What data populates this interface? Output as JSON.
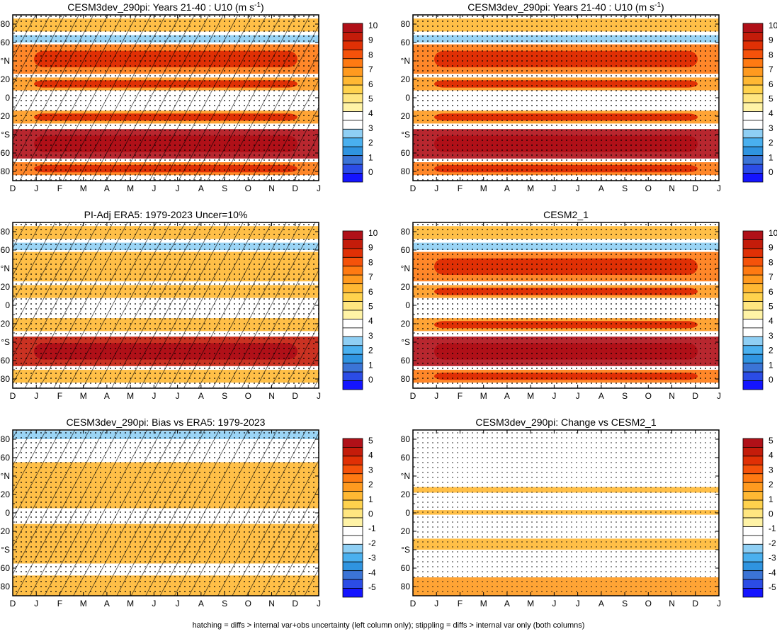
{
  "colors": {
    "diverging": [
      "#1414ff",
      "#2b4ce6",
      "#3b74d6",
      "#2f94e0",
      "#4ab0ef",
      "#8fcff4",
      "#ffffff",
      "#fff3a6",
      "#ffe680",
      "#ffd24d",
      "#ffb833",
      "#ff9a1f",
      "#ff7a12",
      "#f5520a",
      "#e03005",
      "#c41c0a",
      "#b01018"
    ]
  },
  "panels": [
    {
      "title_main": "CESM3dev_290pi: Years 21-40 : U10 (m s",
      "title_sup": "-1",
      "title_close": ")",
      "colorbar_labels": [
        "10",
        "9",
        "8",
        "7",
        "6",
        "5",
        "4",
        "3",
        "2",
        "1",
        "0"
      ],
      "colorbar_colors": [
        "#b01018",
        "#c41c0a",
        "#e03005",
        "#f5520a",
        "#ff7a12",
        "#ff9a1f",
        "#ffb833",
        "#ffd24d",
        "#ffe680",
        "#fff3a6",
        "#ffffff",
        "#ffffff",
        "#8fcff4",
        "#4ab0ef",
        "#2f94e0",
        "#3b74d6",
        "#2b4ce6",
        "#1414ff"
      ]
    },
    {
      "title_main": "CESM3dev_290pi: Years 21-40 : U10 (m s",
      "title_sup": "-1",
      "title_close": ")",
      "colorbar_labels": [
        "10",
        "9",
        "8",
        "7",
        "6",
        "5",
        "4",
        "3",
        "2",
        "1",
        "0"
      ],
      "colorbar_colors": [
        "#b01018",
        "#c41c0a",
        "#e03005",
        "#f5520a",
        "#ff7a12",
        "#ff9a1f",
        "#ffb833",
        "#ffd24d",
        "#ffe680",
        "#fff3a6",
        "#ffffff",
        "#ffffff",
        "#8fcff4",
        "#4ab0ef",
        "#2f94e0",
        "#3b74d6",
        "#2b4ce6",
        "#1414ff"
      ]
    },
    {
      "title_main": "PI-Adj ERA5: 1979-2023 Uncer=10%",
      "title_sup": "",
      "title_close": "",
      "colorbar_labels": [
        "10",
        "9",
        "8",
        "7",
        "6",
        "5",
        "4",
        "3",
        "2",
        "1",
        "0"
      ],
      "colorbar_colors": [
        "#b01018",
        "#c41c0a",
        "#e03005",
        "#f5520a",
        "#ff7a12",
        "#ff9a1f",
        "#ffb833",
        "#ffd24d",
        "#ffe680",
        "#fff3a6",
        "#ffffff",
        "#ffffff",
        "#8fcff4",
        "#4ab0ef",
        "#2f94e0",
        "#3b74d6",
        "#2b4ce6",
        "#1414ff"
      ]
    },
    {
      "title_main": "CESM2_1",
      "title_sup": "",
      "title_close": "",
      "colorbar_labels": [
        "10",
        "9",
        "8",
        "7",
        "6",
        "5",
        "4",
        "3",
        "2",
        "1",
        "0"
      ],
      "colorbar_colors": [
        "#b01018",
        "#c41c0a",
        "#e03005",
        "#f5520a",
        "#ff7a12",
        "#ff9a1f",
        "#ffb833",
        "#ffd24d",
        "#ffe680",
        "#fff3a6",
        "#ffffff",
        "#ffffff",
        "#8fcff4",
        "#4ab0ef",
        "#2f94e0",
        "#3b74d6",
        "#2b4ce6",
        "#1414ff"
      ]
    },
    {
      "title_main": "CESM3dev_290pi: Bias vs ERA5: 1979-2023",
      "title_sup": "",
      "title_close": "",
      "colorbar_labels": [
        "5",
        "4",
        "3",
        "2",
        "1",
        "0",
        "-1",
        "-2",
        "-3",
        "-4",
        "-5"
      ],
      "colorbar_colors": [
        "#b01018",
        "#c41c0a",
        "#e03005",
        "#f5520a",
        "#ff7a12",
        "#ff9a1f",
        "#ffb833",
        "#ffd24d",
        "#ffe680",
        "#fff3a6",
        "#ffffff",
        "#ffffff",
        "#8fcff4",
        "#4ab0ef",
        "#2f94e0",
        "#3b74d6",
        "#2b4ce6",
        "#1414ff"
      ]
    },
    {
      "title_main": "CESM3dev_290pi: Change vs CESM2_1",
      "title_sup": "",
      "title_close": "",
      "colorbar_labels": [
        "5",
        "4",
        "3",
        "2",
        "1",
        "0",
        "-1",
        "-2",
        "-3",
        "-4",
        "-5"
      ],
      "colorbar_colors": [
        "#b01018",
        "#c41c0a",
        "#e03005",
        "#f5520a",
        "#ff7a12",
        "#ff9a1f",
        "#ffb833",
        "#ffd24d",
        "#ffe680",
        "#fff3a6",
        "#ffffff",
        "#ffffff",
        "#8fcff4",
        "#4ab0ef",
        "#2f94e0",
        "#3b74d6",
        "#2b4ce6",
        "#1414ff"
      ]
    }
  ],
  "axes": {
    "x_ticks": [
      "D",
      "J",
      "F",
      "M",
      "A",
      "M",
      "J",
      "J",
      "A",
      "S",
      "O",
      "N",
      "D",
      "J"
    ],
    "y_ticks": [
      "80",
      "60",
      "°N",
      "20",
      "0",
      "20",
      "°S",
      "60",
      "80"
    ]
  },
  "footer": "hatching = diffs > internal var+obs uncertainty (left column only); stippling = diffs > internal var only (both columns)",
  "chart_data": [
    {
      "type": "heatmap",
      "title": "CESM3dev_290pi: Years 21-40 : U10 (m s-1)",
      "x": [
        "D",
        "J",
        "F",
        "M",
        "A",
        "M",
        "J",
        "J",
        "A",
        "S",
        "O",
        "N",
        "D",
        "J"
      ],
      "y": [
        80,
        60,
        40,
        20,
        0,
        -20,
        -40,
        -60,
        -80
      ],
      "colorbar": [
        0,
        1,
        2,
        3,
        4,
        5,
        6,
        7,
        8,
        9,
        10
      ],
      "bands": [
        {
          "lat_from": 86,
          "lat_to": 72,
          "value": 6
        },
        {
          "lat_from": 68,
          "lat_to": 60,
          "value": 3
        },
        {
          "lat_from": 58,
          "lat_to": 26,
          "value": 7.5
        },
        {
          "lat_from": 22,
          "lat_to": 8,
          "value": 7
        },
        {
          "lat_from": 3,
          "lat_to": -6,
          "value": 3.5
        },
        {
          "lat_from": -14,
          "lat_to": -28,
          "value": 7
        },
        {
          "lat_from": -34,
          "lat_to": -66,
          "value": 10
        },
        {
          "lat_from": -70,
          "lat_to": -84,
          "value": 7.5
        }
      ],
      "hatching": true,
      "stippling": true
    },
    {
      "type": "heatmap",
      "title": "CESM3dev_290pi: Years 21-40 : U10 (m s-1)",
      "x": [
        "D",
        "J",
        "F",
        "M",
        "A",
        "M",
        "J",
        "J",
        "A",
        "S",
        "O",
        "N",
        "D",
        "J"
      ],
      "y": [
        80,
        60,
        40,
        20,
        0,
        -20,
        -40,
        -60,
        -80
      ],
      "colorbar": [
        0,
        1,
        2,
        3,
        4,
        5,
        6,
        7,
        8,
        9,
        10
      ],
      "bands": [
        {
          "lat_from": 86,
          "lat_to": 72,
          "value": 6
        },
        {
          "lat_from": 68,
          "lat_to": 60,
          "value": 3
        },
        {
          "lat_from": 58,
          "lat_to": 26,
          "value": 7.5
        },
        {
          "lat_from": 22,
          "lat_to": 8,
          "value": 7
        },
        {
          "lat_from": 3,
          "lat_to": -6,
          "value": 3.5
        },
        {
          "lat_from": -14,
          "lat_to": -28,
          "value": 7
        },
        {
          "lat_from": -34,
          "lat_to": -66,
          "value": 10
        },
        {
          "lat_from": -70,
          "lat_to": -84,
          "value": 7.5
        }
      ],
      "hatching": false,
      "stippling": true
    },
    {
      "type": "heatmap",
      "title": "PI-Adj ERA5: 1979-2023 Uncer=10%",
      "x": [
        "D",
        "J",
        "F",
        "M",
        "A",
        "M",
        "J",
        "J",
        "A",
        "S",
        "O",
        "N",
        "D",
        "J"
      ],
      "y": [
        80,
        60,
        40,
        20,
        0,
        -20,
        -40,
        -60,
        -80
      ],
      "colorbar": [
        0,
        1,
        2,
        3,
        4,
        5,
        6,
        7,
        8,
        9,
        10
      ],
      "bands": [
        {
          "lat_from": 86,
          "lat_to": 72,
          "value": 6
        },
        {
          "lat_from": 68,
          "lat_to": 60,
          "value": 3
        },
        {
          "lat_from": 58,
          "lat_to": 26,
          "value": 6.5
        },
        {
          "lat_from": 22,
          "lat_to": 8,
          "value": 6.5
        },
        {
          "lat_from": 3,
          "lat_to": -6,
          "value": 3.5
        },
        {
          "lat_from": -14,
          "lat_to": -28,
          "value": 6.5
        },
        {
          "lat_from": -34,
          "lat_to": -66,
          "value": 9.5
        },
        {
          "lat_from": -70,
          "lat_to": -84,
          "value": 6
        }
      ],
      "hatching": true,
      "stippling": true
    },
    {
      "type": "heatmap",
      "title": "CESM2_1",
      "x": [
        "D",
        "J",
        "F",
        "M",
        "A",
        "M",
        "J",
        "J",
        "A",
        "S",
        "O",
        "N",
        "D",
        "J"
      ],
      "y": [
        80,
        60,
        40,
        20,
        0,
        -20,
        -40,
        -60,
        -80
      ],
      "colorbar": [
        0,
        1,
        2,
        3,
        4,
        5,
        6,
        7,
        8,
        9,
        10
      ],
      "bands": [
        {
          "lat_from": 86,
          "lat_to": 72,
          "value": 6
        },
        {
          "lat_from": 68,
          "lat_to": 60,
          "value": 3
        },
        {
          "lat_from": 58,
          "lat_to": 26,
          "value": 7.5
        },
        {
          "lat_from": 22,
          "lat_to": 8,
          "value": 7
        },
        {
          "lat_from": 3,
          "lat_to": -6,
          "value": 3.5
        },
        {
          "lat_from": -14,
          "lat_to": -28,
          "value": 7
        },
        {
          "lat_from": -34,
          "lat_to": -66,
          "value": 10
        },
        {
          "lat_from": -70,
          "lat_to": -84,
          "value": 7.5
        }
      ],
      "hatching": false,
      "stippling": true
    },
    {
      "type": "heatmap",
      "title": "CESM3dev_290pi: Bias vs ERA5: 1979-2023",
      "x": [
        "D",
        "J",
        "F",
        "M",
        "A",
        "M",
        "J",
        "J",
        "A",
        "S",
        "O",
        "N",
        "D",
        "J"
      ],
      "y": [
        80,
        60,
        40,
        20,
        0,
        -20,
        -40,
        -60,
        -80
      ],
      "colorbar": [
        -5,
        -4,
        -3,
        -2,
        -1,
        0,
        1,
        2,
        3,
        4,
        5
      ],
      "bands": [
        {
          "lat_from": 89,
          "lat_to": 80,
          "value": -2
        },
        {
          "lat_from": 55,
          "lat_to": 5,
          "value": 1
        },
        {
          "lat_from": -12,
          "lat_to": -55,
          "value": 1
        },
        {
          "lat_from": -68,
          "lat_to": -90,
          "value": 1
        }
      ],
      "hatching": true,
      "stippling": true
    },
    {
      "type": "heatmap",
      "title": "CESM3dev_290pi: Change vs CESM2_1",
      "x": [
        "D",
        "J",
        "F",
        "M",
        "A",
        "M",
        "J",
        "J",
        "A",
        "S",
        "O",
        "N",
        "D",
        "J"
      ],
      "y": [
        80,
        60,
        40,
        20,
        0,
        -20,
        -40,
        -60,
        -80
      ],
      "colorbar": [
        -5,
        -4,
        -3,
        -2,
        -1,
        0,
        1,
        2,
        3,
        4,
        5
      ],
      "bands": [
        {
          "lat_from": 28,
          "lat_to": 22,
          "value": 1
        },
        {
          "lat_from": 3,
          "lat_to": -2,
          "value": 1
        },
        {
          "lat_from": -28,
          "lat_to": -40,
          "value": 1
        },
        {
          "lat_from": -57,
          "lat_to": -62,
          "value": -1
        },
        {
          "lat_from": -70,
          "lat_to": -90,
          "value": 2
        }
      ],
      "hatching": false,
      "stippling": true
    }
  ]
}
